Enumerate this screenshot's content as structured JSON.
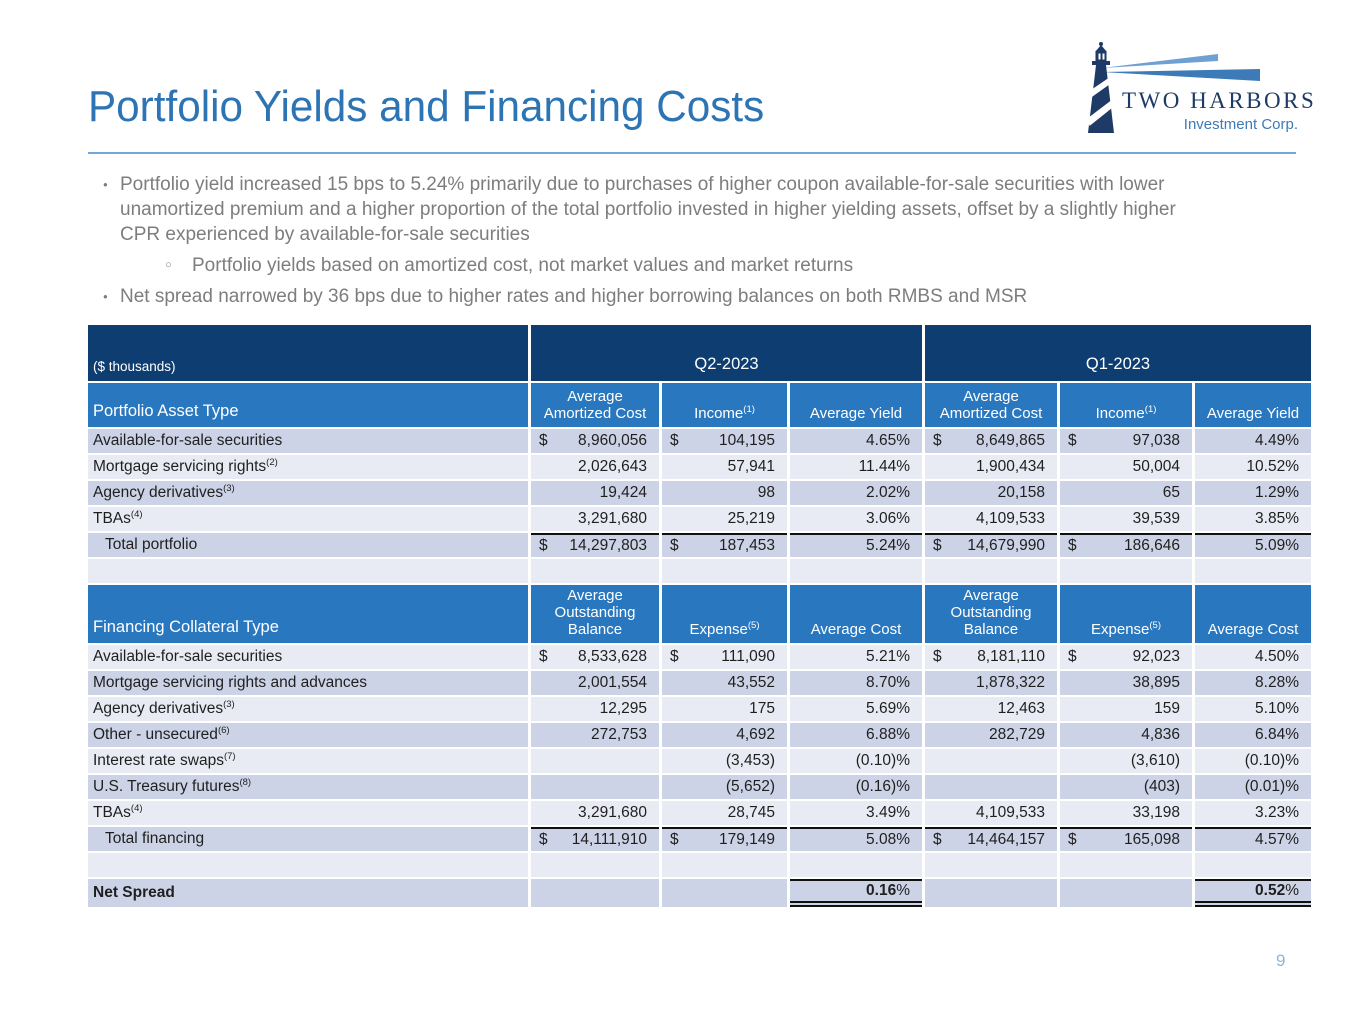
{
  "title": "Portfolio Yields and Financing Costs",
  "logo": {
    "company": "TWO HARBORS",
    "subtitle": "Investment Corp."
  },
  "bullets": {
    "b1": "Portfolio yield increased 15 bps to 5.24% primarily due to purchases of higher coupon available-for-sale securities with lower unamortized premium and a higher proportion of the total portfolio invested in higher yielding assets, offset by a slightly higher CPR experienced by available-for-sale securities",
    "b1_sub": "Portfolio yields based on amortized cost, not market values and market returns",
    "b2": "Net spread narrowed by 36 bps due to higher rates and higher borrowing balances on both RMBS and MSR"
  },
  "table": {
    "units_label": "($ thousands)",
    "periods": [
      "Q2-2023",
      "Q1-2023"
    ],
    "sections": [
      {
        "row_header": "Portfolio Asset Type",
        "col_headers": [
          {
            "text": "Average Amortized Cost",
            "sup": ""
          },
          {
            "text": "Income",
            "sup": "(1)"
          },
          {
            "text": "Average Yield",
            "sup": ""
          },
          {
            "text": "Average Amortized Cost",
            "sup": ""
          },
          {
            "text": "Income",
            "sup": "(1)"
          },
          {
            "text": "Average Yield",
            "sup": ""
          }
        ],
        "rows": [
          {
            "label": "Available-for-sale securities",
            "sup": "",
            "total": false,
            "cells": [
              [
                "$",
                "8,960,056"
              ],
              [
                "$",
                "104,195"
              ],
              [
                "",
                "4.65%"
              ],
              [
                "$",
                "8,649,865"
              ],
              [
                "$",
                "97,038"
              ],
              [
                "",
                "4.49%"
              ]
            ]
          },
          {
            "label": "Mortgage servicing rights",
            "sup": "(2)",
            "total": false,
            "cells": [
              [
                "",
                "2,026,643"
              ],
              [
                "",
                "57,941"
              ],
              [
                "",
                "11.44%"
              ],
              [
                "",
                "1,900,434"
              ],
              [
                "",
                "50,004"
              ],
              [
                "",
                "10.52%"
              ]
            ]
          },
          {
            "label": "Agency derivatives",
            "sup": "(3)",
            "total": false,
            "cells": [
              [
                "",
                "19,424"
              ],
              [
                "",
                "98"
              ],
              [
                "",
                "2.02%"
              ],
              [
                "",
                "20,158"
              ],
              [
                "",
                "65"
              ],
              [
                "",
                "1.29%"
              ]
            ]
          },
          {
            "label": "TBAs",
            "sup": "(4)",
            "total": false,
            "cells": [
              [
                "",
                "3,291,680"
              ],
              [
                "",
                "25,219"
              ],
              [
                "",
                "3.06%"
              ],
              [
                "",
                "4,109,533"
              ],
              [
                "",
                "39,539"
              ],
              [
                "",
                "3.85%"
              ]
            ]
          },
          {
            "label": "Total portfolio",
            "sup": "",
            "total": true,
            "cells": [
              [
                "$",
                "14,297,803"
              ],
              [
                "$",
                "187,453"
              ],
              [
                "",
                "5.24%"
              ],
              [
                "$",
                "14,679,990"
              ],
              [
                "$",
                "186,646"
              ],
              [
                "",
                "5.09%"
              ]
            ]
          }
        ]
      },
      {
        "row_header": "Financing Collateral Type",
        "col_headers": [
          {
            "text": "Average Outstanding Balance",
            "sup": ""
          },
          {
            "text": "Expense",
            "sup": "(5)"
          },
          {
            "text": "Average Cost",
            "sup": ""
          },
          {
            "text": "Average Outstanding Balance",
            "sup": ""
          },
          {
            "text": "Expense",
            "sup": "(5)"
          },
          {
            "text": "Average Cost",
            "sup": ""
          }
        ],
        "rows": [
          {
            "label": "Available-for-sale securities",
            "sup": "",
            "total": false,
            "cells": [
              [
                "$",
                "8,533,628"
              ],
              [
                "$",
                "111,090"
              ],
              [
                "",
                "5.21%"
              ],
              [
                "$",
                "8,181,110"
              ],
              [
                "$",
                "92,023"
              ],
              [
                "",
                "4.50%"
              ]
            ]
          },
          {
            "label": "Mortgage servicing rights and advances",
            "sup": "",
            "total": false,
            "cells": [
              [
                "",
                "2,001,554"
              ],
              [
                "",
                "43,552"
              ],
              [
                "",
                "8.70%"
              ],
              [
                "",
                "1,878,322"
              ],
              [
                "",
                "38,895"
              ],
              [
                "",
                "8.28%"
              ]
            ]
          },
          {
            "label": "Agency derivatives",
            "sup": "(3)",
            "total": false,
            "cells": [
              [
                "",
                "12,295"
              ],
              [
                "",
                "175"
              ],
              [
                "",
                "5.69%"
              ],
              [
                "",
                "12,463"
              ],
              [
                "",
                "159"
              ],
              [
                "",
                "5.10%"
              ]
            ]
          },
          {
            "label": "Other - unsecured",
            "sup": "(6)",
            "total": false,
            "cells": [
              [
                "",
                "272,753"
              ],
              [
                "",
                "4,692"
              ],
              [
                "",
                "6.88%"
              ],
              [
                "",
                "282,729"
              ],
              [
                "",
                "4,836"
              ],
              [
                "",
                "6.84%"
              ]
            ]
          },
          {
            "label": "Interest rate swaps",
            "sup": "(7)",
            "total": false,
            "cells": [
              [
                "",
                ""
              ],
              [
                "",
                "(3,453)"
              ],
              [
                "",
                "(0.10)%"
              ],
              [
                "",
                ""
              ],
              [
                "",
                "(3,610)"
              ],
              [
                "",
                "(0.10)%"
              ]
            ]
          },
          {
            "label": "U.S. Treasury futures",
            "sup": "(8)",
            "total": false,
            "cells": [
              [
                "",
                ""
              ],
              [
                "",
                "(5,652)"
              ],
              [
                "",
                "(0.16)%"
              ],
              [
                "",
                ""
              ],
              [
                "",
                "(403)"
              ],
              [
                "",
                "(0.01)%"
              ]
            ]
          },
          {
            "label": "TBAs",
            "sup": "(4)",
            "total": false,
            "cells": [
              [
                "",
                "3,291,680"
              ],
              [
                "",
                "28,745"
              ],
              [
                "",
                "3.49%"
              ],
              [
                "",
                "4,109,533"
              ],
              [
                "",
                "33,198"
              ],
              [
                "",
                "3.23%"
              ]
            ]
          },
          {
            "label": "Total financing",
            "sup": "",
            "total": true,
            "cells": [
              [
                "$",
                "14,111,910"
              ],
              [
                "$",
                "179,149"
              ],
              [
                "",
                "5.08%"
              ],
              [
                "$",
                "14,464,157"
              ],
              [
                "$",
                "165,098"
              ],
              [
                "",
                "4.57%"
              ]
            ]
          }
        ]
      }
    ],
    "net_spread": {
      "label": "Net Spread",
      "q2": "0.16%",
      "q1": "0.52%"
    }
  },
  "page_number": "9",
  "colors": {
    "header_dark": "#0e3e71",
    "header_mid": "#2977bf",
    "row_dark": "#ccd3e6",
    "row_light": "#e9ebf4",
    "title_blue": "#2d74b5",
    "rule_blue": "#71a8d7",
    "text_gray": "#7d7d7d",
    "logo_navy": "#1e3a66",
    "beam_blue": "#3d7ab8",
    "page_blue": "#95b3d7"
  }
}
